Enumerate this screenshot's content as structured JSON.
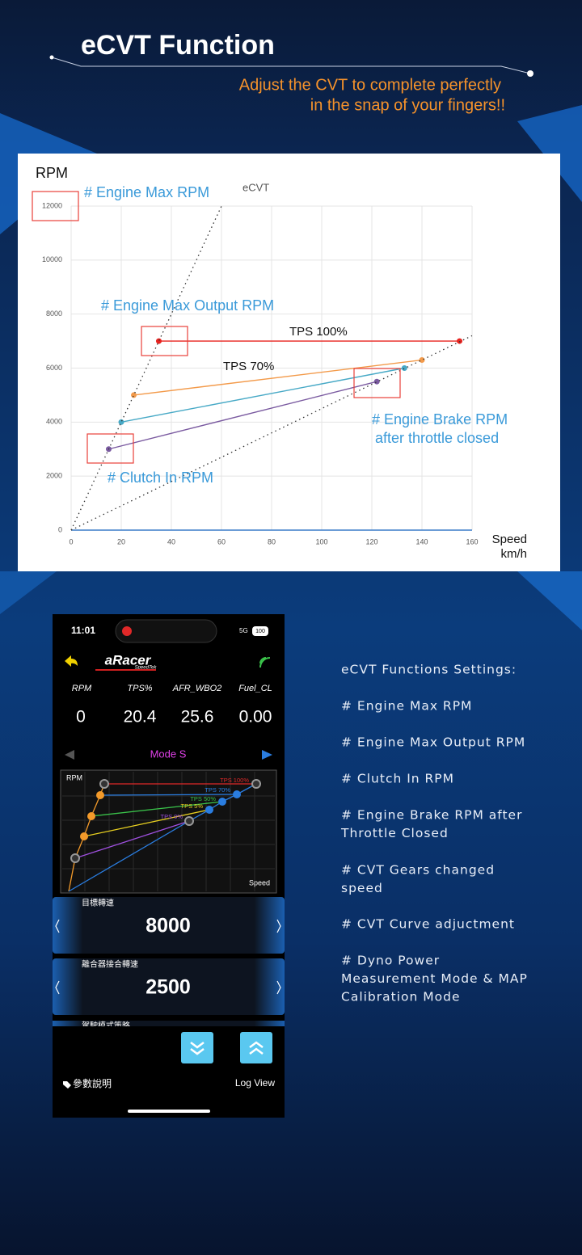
{
  "header": {
    "title": "eCVT Function",
    "subtitle": [
      "Adjust the CVT to complete perfectly",
      "in the snap of your fingers!!"
    ]
  },
  "chart_data": {
    "type": "line",
    "title": "eCVT",
    "y_label": "RPM",
    "x_label": [
      "Speed",
      "km/h"
    ],
    "xlim": [
      0,
      160
    ],
    "xticks": [
      0,
      20,
      40,
      60,
      80,
      100,
      120,
      140,
      160
    ],
    "ylim": [
      0,
      12000
    ],
    "yticks": [
      0,
      2000,
      4000,
      6000,
      8000,
      10000,
      12000
    ],
    "grid": true,
    "series": [
      {
        "color": "#e8231f",
        "x": [
          35,
          155
        ],
        "values": [
          7000,
          7000
        ],
        "markers": true
      },
      {
        "color": "#f39a4a",
        "x": [
          25,
          140
        ],
        "values": [
          5000,
          6300
        ],
        "markers": true
      },
      {
        "color": "#47a9c6",
        "x": [
          20,
          133
        ],
        "values": [
          4000,
          6000
        ],
        "markers": true
      },
      {
        "color": "#7a5aa0",
        "x": [
          15,
          122
        ],
        "values": [
          3000,
          5500
        ],
        "markers": true
      },
      {
        "color": "#333333",
        "x": [
          0,
          60
        ],
        "values": [
          0,
          12000
        ],
        "dash": true
      },
      {
        "color": "#333333",
        "x": [
          0,
          160
        ],
        "values": [
          0,
          7200
        ],
        "dash": true
      }
    ],
    "annotations": [
      "# Engine Max RPM",
      "# Engine Max Output RPM",
      "# Clutch In RPM",
      "# Engine Brake RPM",
      "after throttle closed",
      "TPS 100%",
      "TPS 70%"
    ]
  },
  "phone": {
    "time": "11:01",
    "network": "5G",
    "battery": "100",
    "brand": "aRacer",
    "brand_sub": "SpeedTek",
    "columns": [
      "RPM",
      "TPS%",
      "AFR_WBO2",
      "Fuel_CL"
    ],
    "readings": [
      "0",
      "20.4",
      "25.6",
      "0.00"
    ],
    "mode": "Mode S",
    "mini_chart": {
      "y_label": "RPM",
      "x_label": "Speed",
      "curves": [
        "TPS 100%",
        "TPS 70%",
        "TPS 50%",
        "TPS 5%",
        "TPS 0%"
      ]
    },
    "cards": [
      {
        "label": "目標轉速",
        "value": "8000"
      },
      {
        "label": "離合器接合轉速",
        "value": "2500"
      },
      {
        "label": "駕駛模式策略"
      }
    ],
    "footer": [
      "參數說明",
      "Log View"
    ]
  },
  "features": {
    "heading": "eCVT Functions Settings:",
    "items": [
      [
        "# Engine Max RPM"
      ],
      [
        "# Engine Max Output RPM"
      ],
      [
        "# Clutch In RPM"
      ],
      [
        "# Engine Brake RPM after",
        "Throttle Closed"
      ],
      [
        "# CVT Gears changed",
        "speed"
      ],
      [
        "# CVT Curve adjuctment"
      ],
      [
        "# Dyno Power",
        "Measurement Mode & MAP",
        "Calibration Mode"
      ]
    ]
  }
}
